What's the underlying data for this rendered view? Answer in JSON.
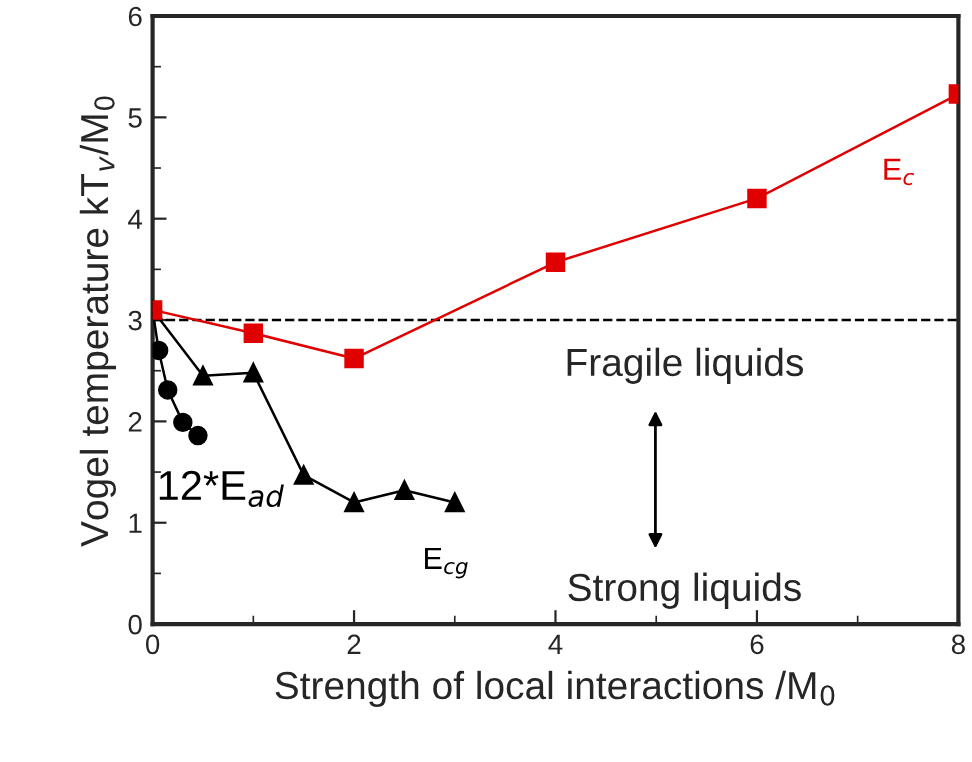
{
  "chart_data": {
    "type": "line",
    "xlabel": "Strength of local interactions /M$_{0}$",
    "ylabel": "Vogel temperature kT$_{v}$/M$_{0}$",
    "xlim": [
      0,
      8
    ],
    "ylim": [
      0,
      6
    ],
    "xticks": [
      0,
      2,
      4,
      6,
      8
    ],
    "yticks": [
      0,
      1,
      2,
      3,
      4,
      5,
      6
    ],
    "grid": false,
    "legend": false,
    "line_style": "solid",
    "series": [
      {
        "name": "E$_{c}$",
        "color": "#e00000",
        "marker": "square",
        "x": [
          0,
          1,
          2,
          4,
          6,
          8
        ],
        "values": [
          3.1,
          2.87,
          2.62,
          3.57,
          4.2,
          5.23
        ]
      },
      {
        "name": "12*E$_{ad}$",
        "color": "#000000",
        "marker": "circle",
        "x": [
          0,
          0.06,
          0.15,
          0.3,
          0.45
        ],
        "values": [
          3.1,
          2.7,
          2.31,
          1.99,
          1.86
        ]
      },
      {
        "name": "E$_{cg}$",
        "color": "#000000",
        "marker": "triangle",
        "x": [
          0,
          0.5,
          1,
          1.5,
          2,
          2.5,
          3
        ],
        "values": [
          3.1,
          2.45,
          2.48,
          1.47,
          1.2,
          1.32,
          1.2
        ]
      }
    ],
    "ref_lines": [
      {
        "axis": "y",
        "value": 3,
        "color": "#000000",
        "line_style": "dashed"
      }
    ],
    "annotations": [
      "Fragile liquids",
      "Strong liquids"
    ]
  }
}
